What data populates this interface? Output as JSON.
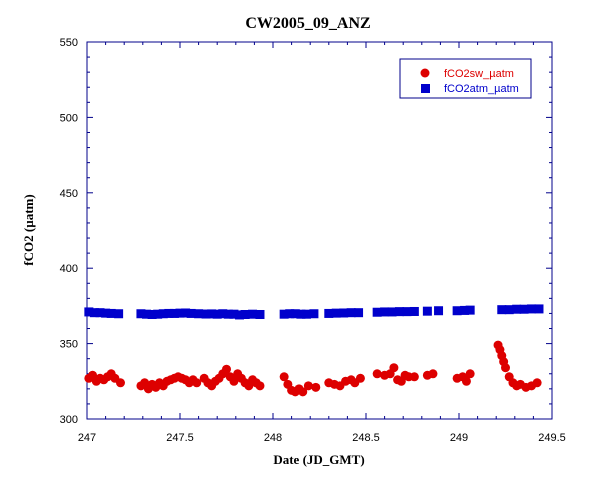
{
  "chart_data": {
    "type": "scatter",
    "title": "CW2005_09_ANZ",
    "xlabel": "Date (JD_GMT)",
    "ylabel": "fCO2 (µatm)",
    "xlim": [
      247,
      249.5
    ],
    "ylim": [
      300,
      550
    ],
    "xticks": [
      "247",
      "247.5",
      "248",
      "248.5",
      "249",
      "249.5"
    ],
    "yticks": [
      "300",
      "350",
      "400",
      "450",
      "500",
      "550"
    ],
    "grid": false,
    "legend_position": "top-right",
    "series": [
      {
        "name": "fCO2sw_µatm",
        "marker": "circle",
        "color": "#dd0000",
        "points": [
          [
            247.01,
            327
          ],
          [
            247.03,
            329
          ],
          [
            247.05,
            325
          ],
          [
            247.07,
            327
          ],
          [
            247.09,
            326
          ],
          [
            247.11,
            328
          ],
          [
            247.13,
            330
          ],
          [
            247.15,
            327
          ],
          [
            247.18,
            324
          ],
          [
            247.29,
            322
          ],
          [
            247.31,
            324
          ],
          [
            247.33,
            320
          ],
          [
            247.35,
            323
          ],
          [
            247.37,
            321
          ],
          [
            247.39,
            324
          ],
          [
            247.41,
            322
          ],
          [
            247.43,
            325
          ],
          [
            247.45,
            326
          ],
          [
            247.47,
            327
          ],
          [
            247.49,
            328
          ],
          [
            247.51,
            327
          ],
          [
            247.53,
            326
          ],
          [
            247.55,
            324
          ],
          [
            247.57,
            326
          ],
          [
            247.59,
            324
          ],
          [
            247.63,
            327
          ],
          [
            247.65,
            324
          ],
          [
            247.67,
            322
          ],
          [
            247.69,
            325
          ],
          [
            247.71,
            327
          ],
          [
            247.73,
            330
          ],
          [
            247.75,
            333
          ],
          [
            247.77,
            328
          ],
          [
            247.79,
            325
          ],
          [
            247.81,
            330
          ],
          [
            247.83,
            327
          ],
          [
            247.85,
            324
          ],
          [
            247.87,
            322
          ],
          [
            247.89,
            326
          ],
          [
            247.91,
            324
          ],
          [
            247.93,
            322
          ],
          [
            248.06,
            328
          ],
          [
            248.08,
            323
          ],
          [
            248.1,
            319
          ],
          [
            248.12,
            318
          ],
          [
            248.14,
            320
          ],
          [
            248.16,
            318
          ],
          [
            248.19,
            322
          ],
          [
            248.23,
            321
          ],
          [
            248.3,
            324
          ],
          [
            248.33,
            323
          ],
          [
            248.36,
            322
          ],
          [
            248.39,
            325
          ],
          [
            248.42,
            326
          ],
          [
            248.44,
            324
          ],
          [
            248.47,
            327
          ],
          [
            248.56,
            330
          ],
          [
            248.6,
            329
          ],
          [
            248.63,
            330
          ],
          [
            248.65,
            334
          ],
          [
            248.67,
            326
          ],
          [
            248.69,
            325
          ],
          [
            248.71,
            329
          ],
          [
            248.73,
            328
          ],
          [
            248.76,
            328
          ],
          [
            248.83,
            329
          ],
          [
            248.86,
            330
          ],
          [
            248.99,
            327
          ],
          [
            249.02,
            328
          ],
          [
            249.04,
            325
          ],
          [
            249.06,
            330
          ],
          [
            249.21,
            349
          ],
          [
            249.22,
            346
          ],
          [
            249.23,
            342
          ],
          [
            249.24,
            338
          ],
          [
            249.25,
            334
          ],
          [
            249.27,
            328
          ],
          [
            249.29,
            324
          ],
          [
            249.31,
            322
          ],
          [
            249.33,
            323
          ],
          [
            249.36,
            321
          ],
          [
            249.39,
            322
          ],
          [
            249.42,
            324
          ]
        ]
      },
      {
        "name": "fCO2atm_µatm",
        "marker": "square",
        "color": "#0000cc",
        "points": [
          [
            247.01,
            371
          ],
          [
            247.04,
            370.5
          ],
          [
            247.07,
            370.5
          ],
          [
            247.1,
            370.2
          ],
          [
            247.13,
            370
          ],
          [
            247.17,
            369.8
          ],
          [
            247.29,
            369.8
          ],
          [
            247.32,
            369.5
          ],
          [
            247.35,
            369.3
          ],
          [
            247.38,
            369.5
          ],
          [
            247.41,
            369.8
          ],
          [
            247.44,
            370
          ],
          [
            247.47,
            370
          ],
          [
            247.5,
            370.2
          ],
          [
            247.53,
            370.3
          ],
          [
            247.56,
            370
          ],
          [
            247.6,
            369.8
          ],
          [
            247.64,
            369.6
          ],
          [
            247.67,
            369.7
          ],
          [
            247.7,
            369.5
          ],
          [
            247.73,
            369.8
          ],
          [
            247.76,
            369.5
          ],
          [
            247.79,
            369.5
          ],
          [
            247.82,
            369
          ],
          [
            247.85,
            369.3
          ],
          [
            247.89,
            369.5
          ],
          [
            247.93,
            369.3
          ],
          [
            248.06,
            369.5
          ],
          [
            248.09,
            369.8
          ],
          [
            248.12,
            369.8
          ],
          [
            248.15,
            369.5
          ],
          [
            248.18,
            369.5
          ],
          [
            248.22,
            369.8
          ],
          [
            248.3,
            370
          ],
          [
            248.34,
            370.2
          ],
          [
            248.38,
            370.3
          ],
          [
            248.42,
            370.5
          ],
          [
            248.46,
            370.5
          ],
          [
            248.56,
            370.8
          ],
          [
            248.6,
            371
          ],
          [
            248.64,
            371
          ],
          [
            248.68,
            371.2
          ],
          [
            248.72,
            371.2
          ],
          [
            248.76,
            371.3
          ],
          [
            248.83,
            371.5
          ],
          [
            248.89,
            371.8
          ],
          [
            248.99,
            371.8
          ],
          [
            249.03,
            372
          ],
          [
            249.06,
            372.2
          ],
          [
            249.23,
            372.5
          ],
          [
            249.27,
            372.5
          ],
          [
            249.31,
            372.8
          ],
          [
            249.35,
            372.8
          ],
          [
            249.39,
            373
          ],
          [
            249.43,
            373
          ]
        ]
      }
    ]
  }
}
